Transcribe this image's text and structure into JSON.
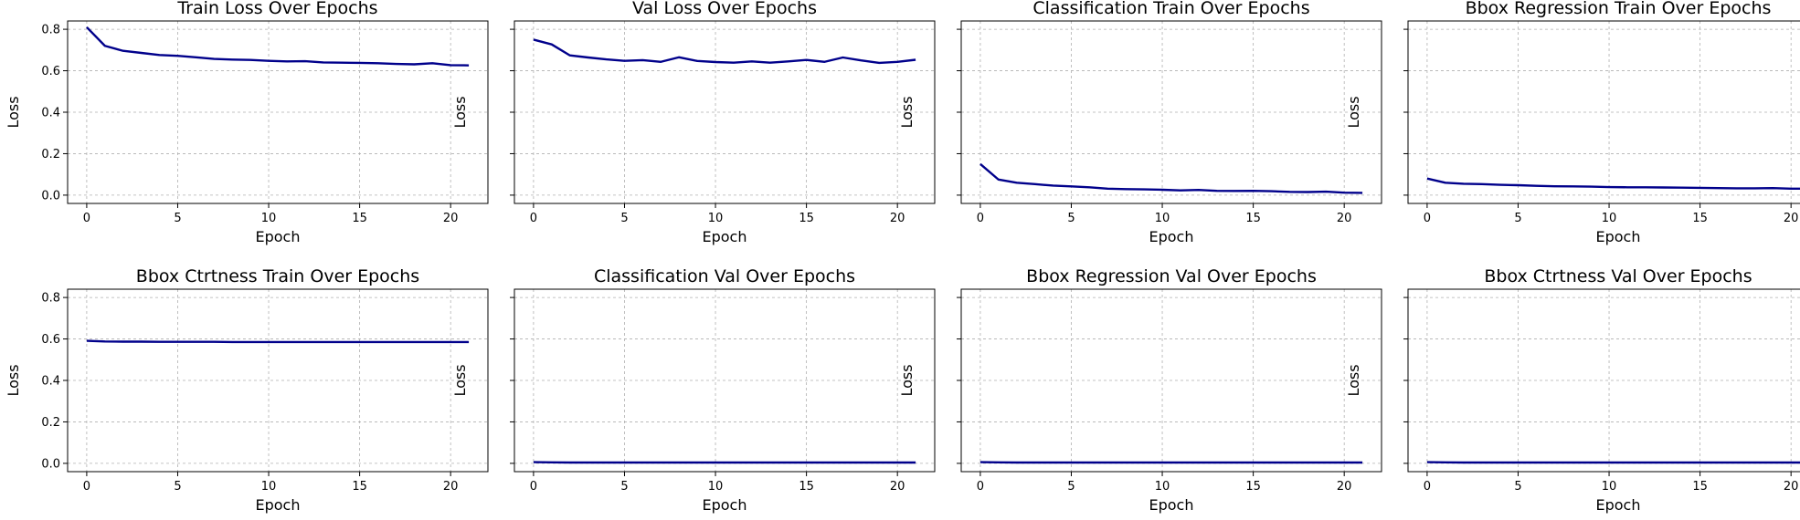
{
  "chart_data": [
    {
      "type": "line",
      "title": "Train Loss Over Epochs",
      "xlabel": "Epoch",
      "ylabel": "Loss",
      "xlim": [
        -1.05,
        22.05
      ],
      "ylim": [
        -0.04,
        0.84
      ],
      "xticks": [
        0,
        5,
        10,
        15,
        20
      ],
      "yticks": [
        0.0,
        0.2,
        0.4,
        0.6,
        0.8
      ],
      "ytick_labels_shown": true,
      "grid": true,
      "color": "#00008b",
      "x": [
        0,
        1,
        2,
        3,
        4,
        5,
        6,
        7,
        8,
        9,
        10,
        11,
        12,
        13,
        14,
        15,
        16,
        17,
        18,
        19,
        20,
        21
      ],
      "y": [
        0.81,
        0.72,
        0.696,
        0.686,
        0.676,
        0.672,
        0.665,
        0.657,
        0.654,
        0.652,
        0.648,
        0.645,
        0.646,
        0.64,
        0.639,
        0.638,
        0.636,
        0.633,
        0.631,
        0.636,
        0.627,
        0.626
      ]
    },
    {
      "type": "line",
      "title": "Val Loss Over Epochs",
      "xlabel": "Epoch",
      "ylabel": "Loss",
      "xlim": [
        -1.05,
        22.05
      ],
      "ylim": [
        -0.04,
        0.84
      ],
      "xticks": [
        0,
        5,
        10,
        15,
        20
      ],
      "yticks": [
        0.0,
        0.2,
        0.4,
        0.6,
        0.8
      ],
      "ytick_labels_shown": false,
      "grid": true,
      "color": "#00008b",
      "x": [
        0,
        1,
        2,
        3,
        4,
        5,
        6,
        7,
        8,
        9,
        10,
        11,
        12,
        13,
        14,
        15,
        16,
        17,
        18,
        19,
        20,
        21
      ],
      "y": [
        0.75,
        0.727,
        0.674,
        0.664,
        0.655,
        0.648,
        0.651,
        0.643,
        0.665,
        0.647,
        0.642,
        0.639,
        0.645,
        0.639,
        0.645,
        0.652,
        0.643,
        0.664,
        0.65,
        0.638,
        0.643,
        0.653
      ]
    },
    {
      "type": "line",
      "title": "Classification Train Over Epochs",
      "xlabel": "Epoch",
      "ylabel": "Loss",
      "xlim": [
        -1.05,
        22.05
      ],
      "ylim": [
        -0.04,
        0.84
      ],
      "xticks": [
        0,
        5,
        10,
        15,
        20
      ],
      "yticks": [
        0.0,
        0.2,
        0.4,
        0.6,
        0.8
      ],
      "ytick_labels_shown": false,
      "grid": true,
      "color": "#00008b",
      "x": [
        0,
        1,
        2,
        3,
        4,
        5,
        6,
        7,
        8,
        9,
        10,
        11,
        12,
        13,
        14,
        15,
        16,
        17,
        18,
        19,
        20,
        21
      ],
      "y": [
        0.15,
        0.075,
        0.06,
        0.053,
        0.046,
        0.042,
        0.038,
        0.031,
        0.029,
        0.028,
        0.026,
        0.023,
        0.025,
        0.021,
        0.02,
        0.021,
        0.019,
        0.016,
        0.015,
        0.017,
        0.012,
        0.011
      ]
    },
    {
      "type": "line",
      "title": "Bbox Regression Train Over Epochs",
      "xlabel": "Epoch",
      "ylabel": "Loss",
      "xlim": [
        -1.05,
        22.05
      ],
      "ylim": [
        -0.04,
        0.84
      ],
      "xticks": [
        0,
        5,
        10,
        15,
        20
      ],
      "yticks": [
        0.0,
        0.2,
        0.4,
        0.6,
        0.8
      ],
      "ytick_labels_shown": false,
      "grid": true,
      "color": "#00008b",
      "x": [
        0,
        1,
        2,
        3,
        4,
        5,
        6,
        7,
        8,
        9,
        10,
        11,
        12,
        13,
        14,
        15,
        16,
        17,
        18,
        19,
        20,
        21
      ],
      "y": [
        0.08,
        0.06,
        0.055,
        0.053,
        0.05,
        0.048,
        0.045,
        0.043,
        0.042,
        0.041,
        0.039,
        0.038,
        0.038,
        0.037,
        0.036,
        0.035,
        0.034,
        0.033,
        0.033,
        0.034,
        0.031,
        0.031
      ]
    },
    {
      "type": "line",
      "title": "Bbox Ctrtness Train Over Epochs",
      "xlabel": "Epoch",
      "ylabel": "Loss",
      "xlim": [
        -1.05,
        22.05
      ],
      "ylim": [
        -0.04,
        0.84
      ],
      "xticks": [
        0,
        5,
        10,
        15,
        20
      ],
      "yticks": [
        0.0,
        0.2,
        0.4,
        0.6,
        0.8
      ],
      "ytick_labels_shown": true,
      "grid": true,
      "color": "#00008b",
      "x": [
        0,
        1,
        2,
        3,
        4,
        5,
        6,
        7,
        8,
        9,
        10,
        11,
        12,
        13,
        14,
        15,
        16,
        17,
        18,
        19,
        20,
        21
      ],
      "y": [
        0.591,
        0.588,
        0.587,
        0.587,
        0.586,
        0.586,
        0.586,
        0.586,
        0.585,
        0.585,
        0.585,
        0.585,
        0.585,
        0.585,
        0.585,
        0.585,
        0.585,
        0.585,
        0.585,
        0.585,
        0.585,
        0.585
      ]
    },
    {
      "type": "line",
      "title": "Classification Val Over Epochs",
      "xlabel": "Epoch",
      "ylabel": "Loss",
      "xlim": [
        -1.05,
        22.05
      ],
      "ylim": [
        -0.04,
        0.84
      ],
      "xticks": [
        0,
        5,
        10,
        15,
        20
      ],
      "yticks": [
        0.0,
        0.2,
        0.4,
        0.6,
        0.8
      ],
      "ytick_labels_shown": false,
      "grid": true,
      "color": "#00008b",
      "x": [
        0,
        1,
        2,
        3,
        4,
        5,
        6,
        7,
        8,
        9,
        10,
        11,
        12,
        13,
        14,
        15,
        16,
        17,
        18,
        19,
        20,
        21
      ],
      "y": [
        0.006,
        0.005,
        0.004,
        0.004,
        0.004,
        0.004,
        0.004,
        0.004,
        0.004,
        0.004,
        0.004,
        0.004,
        0.004,
        0.004,
        0.004,
        0.004,
        0.004,
        0.004,
        0.004,
        0.004,
        0.004,
        0.004
      ]
    },
    {
      "type": "line",
      "title": "Bbox Regression Val Over Epochs",
      "xlabel": "Epoch",
      "ylabel": "Loss",
      "xlim": [
        -1.05,
        22.05
      ],
      "ylim": [
        -0.04,
        0.84
      ],
      "xticks": [
        0,
        5,
        10,
        15,
        20
      ],
      "yticks": [
        0.0,
        0.2,
        0.4,
        0.6,
        0.8
      ],
      "ytick_labels_shown": false,
      "grid": true,
      "color": "#00008b",
      "x": [
        0,
        1,
        2,
        3,
        4,
        5,
        6,
        7,
        8,
        9,
        10,
        11,
        12,
        13,
        14,
        15,
        16,
        17,
        18,
        19,
        20,
        21
      ],
      "y": [
        0.006,
        0.005,
        0.004,
        0.004,
        0.004,
        0.004,
        0.004,
        0.004,
        0.004,
        0.004,
        0.004,
        0.004,
        0.004,
        0.004,
        0.004,
        0.004,
        0.004,
        0.004,
        0.004,
        0.004,
        0.004,
        0.004
      ]
    },
    {
      "type": "line",
      "title": "Bbox Ctrtness Val Over Epochs",
      "xlabel": "Epoch",
      "ylabel": "Loss",
      "xlim": [
        -1.05,
        22.05
      ],
      "ylim": [
        -0.04,
        0.84
      ],
      "xticks": [
        0,
        5,
        10,
        15,
        20
      ],
      "yticks": [
        0.0,
        0.2,
        0.4,
        0.6,
        0.8
      ],
      "ytick_labels_shown": false,
      "grid": true,
      "color": "#00008b",
      "x": [
        0,
        1,
        2,
        3,
        4,
        5,
        6,
        7,
        8,
        9,
        10,
        11,
        12,
        13,
        14,
        15,
        16,
        17,
        18,
        19,
        20,
        21
      ],
      "y": [
        0.006,
        0.005,
        0.004,
        0.004,
        0.004,
        0.004,
        0.004,
        0.004,
        0.004,
        0.004,
        0.004,
        0.004,
        0.004,
        0.004,
        0.004,
        0.004,
        0.004,
        0.004,
        0.004,
        0.004,
        0.004,
        0.004
      ]
    }
  ]
}
